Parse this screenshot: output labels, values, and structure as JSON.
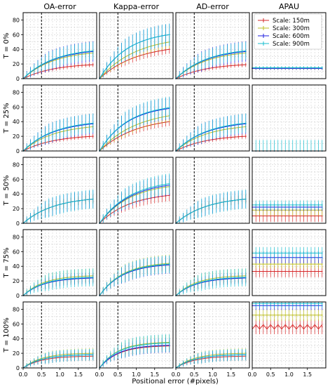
{
  "chart_data": {
    "type": "line",
    "xlabel": "Positional error (#pixels)",
    "columns": [
      "OA-error",
      "Kappa-error",
      "AD-error",
      "APAU"
    ],
    "rows": [
      "T = 0%",
      "T = 25%",
      "T = 50%",
      "T = 75%",
      "T = 100%"
    ],
    "x_ticks": [
      "0.0",
      "0.5",
      "1.0",
      "1.5"
    ],
    "y_ticks": [
      "0",
      "20",
      "40",
      "60",
      "80"
    ],
    "xlim": [
      0,
      2
    ],
    "ylim": [
      0,
      90
    ],
    "vline_x": 0.5,
    "legend": {
      "placement": "top-right",
      "entries": [
        "Scale: 150m",
        "Scale: 300m",
        "Scale: 600m",
        "Scale: 900m"
      ]
    },
    "series_colors": [
      "#d62728",
      "#bcbd22",
      "#1f1fdf",
      "#17becf"
    ],
    "x": [
      0.0,
      0.1,
      0.2,
      0.3,
      0.4,
      0.5,
      0.6,
      0.7,
      0.8,
      0.9,
      1.0,
      1.1,
      1.2,
      1.3,
      1.4,
      1.5,
      1.6,
      1.7,
      1.8,
      1.9
    ],
    "panels": [
      [
        {
          "series": [
            {
              "end": 19,
              "k": 1.2,
              "err": 3
            },
            {
              "end": 35,
              "k": 1.2,
              "err": 5
            },
            {
              "end": 37,
              "k": 1.2,
              "err": 14
            },
            {
              "end": 38,
              "k": 1.2,
              "err": 12
            }
          ]
        },
        {
          "series": [
            {
              "end": 40,
              "k": 1.0,
              "err": 6
            },
            {
              "end": 50,
              "k": 1.0,
              "err": 9
            },
            {
              "end": 60,
              "k": 1.3,
              "err": 15
            },
            {
              "end": 60,
              "k": 1.3,
              "err": 15
            }
          ]
        },
        {
          "series": [
            {
              "end": 19,
              "k": 1.2,
              "err": 3
            },
            {
              "end": 35,
              "k": 1.2,
              "err": 5
            },
            {
              "end": 37,
              "k": 1.2,
              "err": 14
            },
            {
              "end": 38,
              "k": 1.2,
              "err": 12
            }
          ]
        },
        {
          "series": [
            {
              "const": 14,
              "err": 2
            },
            {
              "const": 14,
              "err": 2
            },
            {
              "const": 14,
              "err": 2
            },
            {
              "const": 15,
              "err": 2
            }
          ]
        }
      ],
      [
        {
          "series": [
            {
              "end": 20,
              "k": 1.2,
              "err": 3
            },
            {
              "end": 33,
              "k": 1.2,
              "err": 5
            },
            {
              "end": 37,
              "k": 1.2,
              "err": 14
            },
            {
              "end": 38,
              "k": 1.2,
              "err": 13
            }
          ]
        },
        {
          "series": [
            {
              "end": 40,
              "k": 1.0,
              "err": 6
            },
            {
              "end": 48,
              "k": 1.0,
              "err": 9
            },
            {
              "end": 58,
              "k": 1.3,
              "err": 15
            },
            {
              "end": 59,
              "k": 1.3,
              "err": 15
            }
          ]
        },
        {
          "series": [
            {
              "end": 20,
              "k": 1.2,
              "err": 3
            },
            {
              "end": 33,
              "k": 1.2,
              "err": 5
            },
            {
              "end": 37,
              "k": 1.2,
              "err": 14
            },
            {
              "end": 38,
              "k": 1.2,
              "err": 13
            }
          ]
        },
        {
          "series": [
            {
              "const": 0,
              "err": 0
            },
            {
              "const": 0,
              "err": 0
            },
            {
              "const": 0,
              "err": 0
            },
            {
              "const": 0,
              "err": 15
            }
          ]
        }
      ],
      [
        {
          "series": [
            {
              "end": 33,
              "k": 1.2,
              "err": 6
            },
            {
              "end": 33,
              "k": 1.2,
              "err": 6
            },
            {
              "end": 33,
              "k": 1.2,
              "err": 12
            },
            {
              "end": 33,
              "k": 1.2,
              "err": 13
            }
          ]
        },
        {
          "series": [
            {
              "end": 38,
              "k": 1.2,
              "err": 8
            },
            {
              "end": 50,
              "k": 1.2,
              "err": 10
            },
            {
              "end": 52,
              "k": 1.2,
              "err": 14
            },
            {
              "end": 54,
              "k": 1.2,
              "err": 14
            }
          ]
        },
        {
          "series": [
            {
              "end": 33,
              "k": 1.2,
              "err": 6
            },
            {
              "end": 33,
              "k": 1.2,
              "err": 6
            },
            {
              "end": 33,
              "k": 1.2,
              "err": 12
            },
            {
              "end": 33,
              "k": 1.2,
              "err": 13
            }
          ]
        },
        {
          "series": [
            {
              "const": 10,
              "err": 8
            },
            {
              "const": 18,
              "err": 8
            },
            {
              "const": 22,
              "err": 5
            },
            {
              "const": 25,
              "err": 6
            }
          ]
        }
      ],
      [
        {
          "series": [
            {
              "end": 24,
              "k": 1.8,
              "err": 6
            },
            {
              "end": 27,
              "k": 1.8,
              "err": 10
            },
            {
              "end": 24,
              "k": 1.8,
              "err": 8
            },
            {
              "end": 25,
              "k": 1.8,
              "err": 12
            }
          ]
        },
        {
          "series": [
            {
              "end": 42,
              "k": 1.6,
              "err": 8
            },
            {
              "end": 44,
              "k": 1.6,
              "err": 12
            },
            {
              "end": 42,
              "k": 1.6,
              "err": 12
            },
            {
              "end": 43,
              "k": 1.6,
              "err": 12
            }
          ]
        },
        {
          "series": [
            {
              "end": 24,
              "k": 1.8,
              "err": 6
            },
            {
              "end": 27,
              "k": 1.8,
              "err": 10
            },
            {
              "end": 24,
              "k": 1.8,
              "err": 8
            },
            {
              "end": 25,
              "k": 1.8,
              "err": 12
            }
          ]
        },
        {
          "series": [
            {
              "const": 33,
              "err": 8
            },
            {
              "const": 43,
              "err": 6
            },
            {
              "const": 52,
              "err": 8
            },
            {
              "const": 58,
              "err": 8
            }
          ]
        }
      ],
      [
        {
          "series": [
            {
              "end": 16,
              "k": 2.0,
              "err": 6
            },
            {
              "end": 20,
              "k": 2.0,
              "err": 7
            },
            {
              "end": 18,
              "k": 2.0,
              "err": 7
            },
            {
              "end": 18,
              "k": 2.0,
              "err": 8
            }
          ]
        },
        {
          "series": [
            {
              "end": 30,
              "k": 2.0,
              "err": 8
            },
            {
              "end": 35,
              "k": 2.0,
              "err": 10
            },
            {
              "end": 31,
              "k": 2.0,
              "err": 10
            },
            {
              "end": 34,
              "k": 2.0,
              "err": 12
            }
          ]
        },
        {
          "series": [
            {
              "end": 16,
              "k": 2.0,
              "err": 6
            },
            {
              "end": 20,
              "k": 2.0,
              "err": 7
            },
            {
              "end": 18,
              "k": 2.0,
              "err": 7
            },
            {
              "end": 18,
              "k": 2.0,
              "err": 8
            }
          ]
        },
        {
          "series": [
            {
              "const": 56,
              "err": 10
            },
            {
              "const": 72,
              "err": 8
            },
            {
              "const": 85,
              "err": 6
            },
            {
              "const": 88,
              "err": 6
            }
          ]
        }
      ]
    ]
  }
}
